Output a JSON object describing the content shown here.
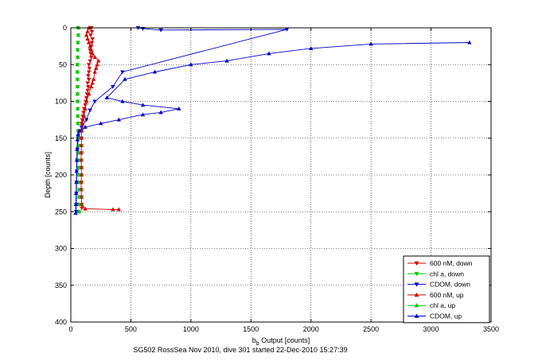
{
  "chart_data": {
    "type": "scatter",
    "title": "",
    "xlabel": "b",
    "xlabel_sub": "b",
    "xlabel_rest": " Output [counts]",
    "ylabel": "Depth [counts]",
    "footer": "SG502 RossSea Nov 2010, dive 301 started 22-Dec-2010 15:27:39",
    "xlim": [
      0,
      3500
    ],
    "ylim": [
      0,
      400
    ],
    "y_reversed": true,
    "xticks": [
      0,
      500,
      1000,
      1500,
      2000,
      2500,
      3000,
      3500
    ],
    "yticks": [
      0,
      50,
      100,
      150,
      200,
      250,
      300,
      350,
      400
    ],
    "grid": true,
    "legend_position": "bottom-right",
    "series": [
      {
        "name": "600 nM, down",
        "color": "#d40000",
        "marker": "triangle-down",
        "line": false,
        "points": [
          [
            170,
            0
          ],
          [
            175,
            5
          ],
          [
            165,
            10
          ],
          [
            180,
            15
          ],
          [
            175,
            20
          ],
          [
            170,
            25
          ],
          [
            160,
            30
          ],
          [
            165,
            35
          ],
          [
            170,
            40
          ],
          [
            160,
            45
          ],
          [
            150,
            50
          ],
          [
            155,
            55
          ],
          [
            150,
            60
          ],
          [
            145,
            65
          ],
          [
            150,
            70
          ],
          [
            140,
            75
          ],
          [
            145,
            80
          ],
          [
            140,
            85
          ],
          [
            135,
            90
          ],
          [
            130,
            95
          ],
          [
            125,
            100
          ],
          [
            120,
            105
          ],
          [
            110,
            110
          ],
          [
            105,
            115
          ],
          [
            100,
            120
          ],
          [
            95,
            125
          ],
          [
            90,
            130
          ],
          [
            92,
            135
          ],
          [
            90,
            140
          ],
          [
            88,
            150
          ],
          [
            86,
            160
          ],
          [
            88,
            170
          ],
          [
            86,
            180
          ],
          [
            88,
            190
          ],
          [
            86,
            200
          ],
          [
            88,
            210
          ],
          [
            86,
            220
          ],
          [
            88,
            230
          ],
          [
            90,
            240
          ],
          [
            92,
            245
          ]
        ]
      },
      {
        "name": "chl a, down",
        "color": "#00cc00",
        "marker": "triangle-down",
        "line": false,
        "points": [
          [
            60,
            0
          ],
          [
            62,
            10
          ],
          [
            58,
            20
          ],
          [
            55,
            30
          ],
          [
            56,
            40
          ],
          [
            55,
            50
          ],
          [
            54,
            60
          ],
          [
            55,
            70
          ],
          [
            56,
            80
          ],
          [
            55,
            90
          ],
          [
            56,
            100
          ],
          [
            57,
            110
          ],
          [
            58,
            120
          ],
          [
            60,
            130
          ],
          [
            62,
            140
          ],
          [
            64,
            150
          ],
          [
            65,
            160
          ],
          [
            66,
            170
          ],
          [
            66,
            180
          ],
          [
            67,
            190
          ],
          [
            68,
            200
          ],
          [
            68,
            210
          ],
          [
            69,
            220
          ],
          [
            70,
            230
          ],
          [
            70,
            240
          ],
          [
            70,
            250
          ]
        ]
      },
      {
        "name": "CDOM, down",
        "color": "#0000cc",
        "marker": "triangle-down",
        "line": true,
        "points": [
          [
            560,
            0
          ],
          [
            600,
            1
          ],
          [
            750,
            3
          ],
          [
            1800,
            2
          ],
          [
            430,
            60
          ],
          [
            350,
            80
          ],
          [
            200,
            100
          ],
          [
            160,
            112
          ],
          [
            130,
            125
          ],
          [
            90,
            135
          ],
          [
            60,
            150
          ],
          [
            55,
            165
          ],
          [
            52,
            180
          ],
          [
            50,
            195
          ],
          [
            48,
            210
          ],
          [
            46,
            225
          ],
          [
            45,
            240
          ],
          [
            44,
            250
          ]
        ]
      },
      {
        "name": "600 nM, up",
        "color": "#d40000",
        "marker": "triangle-up",
        "line": true,
        "points": [
          [
            400,
            247
          ],
          [
            350,
            247
          ],
          [
            120,
            246
          ],
          [
            90,
            240
          ],
          [
            88,
            230
          ],
          [
            86,
            220
          ],
          [
            86,
            210
          ],
          [
            88,
            200
          ],
          [
            88,
            190
          ],
          [
            86,
            180
          ],
          [
            86,
            170
          ],
          [
            88,
            160
          ],
          [
            88,
            150
          ],
          [
            90,
            140
          ],
          [
            95,
            130
          ],
          [
            100,
            125
          ],
          [
            110,
            120
          ],
          [
            120,
            110
          ],
          [
            130,
            100
          ],
          [
            150,
            90
          ],
          [
            170,
            80
          ],
          [
            180,
            75
          ],
          [
            190,
            70
          ],
          [
            200,
            60
          ],
          [
            210,
            55
          ],
          [
            220,
            50
          ],
          [
            230,
            45
          ],
          [
            200,
            40
          ],
          [
            180,
            35
          ],
          [
            170,
            30
          ],
          [
            160,
            25
          ],
          [
            150,
            20
          ],
          [
            140,
            15
          ],
          [
            130,
            10
          ],
          [
            140,
            5
          ],
          [
            150,
            0
          ]
        ]
      },
      {
        "name": "chl a, up",
        "color": "#00cc00",
        "marker": "triangle-up",
        "line": false,
        "points": [
          [
            68,
            250
          ],
          [
            68,
            240
          ],
          [
            67,
            230
          ],
          [
            67,
            220
          ],
          [
            66,
            210
          ],
          [
            66,
            200
          ],
          [
            65,
            190
          ],
          [
            64,
            180
          ],
          [
            63,
            170
          ],
          [
            62,
            160
          ],
          [
            61,
            150
          ],
          [
            60,
            140
          ],
          [
            59,
            130
          ],
          [
            58,
            120
          ],
          [
            57,
            110
          ],
          [
            56,
            100
          ],
          [
            55,
            90
          ],
          [
            55,
            80
          ],
          [
            56,
            70
          ],
          [
            55,
            60
          ],
          [
            56,
            50
          ],
          [
            57,
            40
          ],
          [
            58,
            30
          ],
          [
            60,
            20
          ],
          [
            62,
            10
          ],
          [
            64,
            0
          ]
        ]
      },
      {
        "name": "CDOM, up",
        "color": "#0000cc",
        "marker": "triangle-up",
        "line": true,
        "points": [
          [
            40,
            252
          ],
          [
            42,
            240
          ],
          [
            44,
            225
          ],
          [
            46,
            210
          ],
          [
            48,
            195
          ],
          [
            50,
            180
          ],
          [
            52,
            165
          ],
          [
            55,
            152
          ],
          [
            60,
            145
          ],
          [
            70,
            140
          ],
          [
            120,
            135
          ],
          [
            250,
            130
          ],
          [
            400,
            125
          ],
          [
            600,
            118
          ],
          [
            750,
            115
          ],
          [
            900,
            110
          ],
          [
            600,
            105
          ],
          [
            430,
            100
          ],
          [
            300,
            95
          ],
          [
            450,
            70
          ],
          [
            700,
            60
          ],
          [
            1000,
            50
          ],
          [
            1300,
            45
          ],
          [
            1650,
            35
          ],
          [
            2000,
            28
          ],
          [
            2500,
            22
          ],
          [
            3320,
            20
          ]
        ]
      }
    ]
  }
}
